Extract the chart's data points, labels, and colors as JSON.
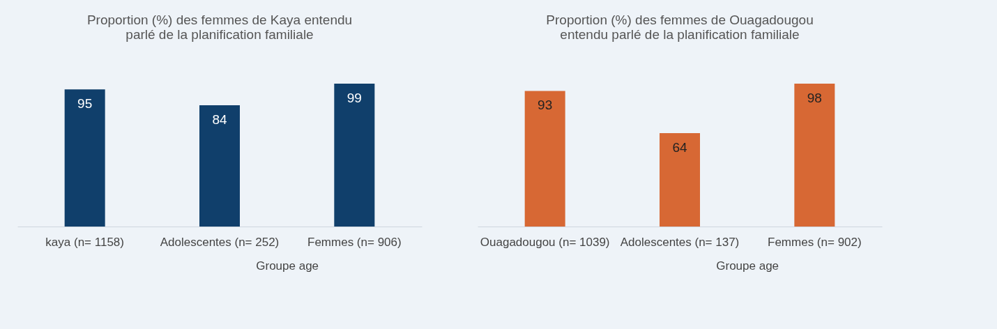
{
  "chart_data": [
    {
      "type": "bar",
      "title": "Proportion (%) des femmes de Kaya entendu parlé de la planification familiale",
      "xlabel": "Groupe age",
      "categories": [
        "kaya (n= 1158)",
        "Adolescentes (n= 252)",
        "Femmes (n= 906)"
      ],
      "values": [
        95,
        84,
        99
      ],
      "color": "#103f6b",
      "data_labels": true,
      "tick_labels": "x"
    },
    {
      "type": "bar",
      "title": "Proportion (%) des femmes de Ouagadougou entendu parlé de la planification familiale",
      "xlabel": "Groupe age",
      "categories": [
        "Ouagadougou (n= 1039)",
        "Adolescentes (n= 137)",
        "Femmes (n= 902)"
      ],
      "values": [
        93,
        64,
        98
      ],
      "color": "#d76834",
      "data_labels": true,
      "tick_labels": "x"
    }
  ]
}
